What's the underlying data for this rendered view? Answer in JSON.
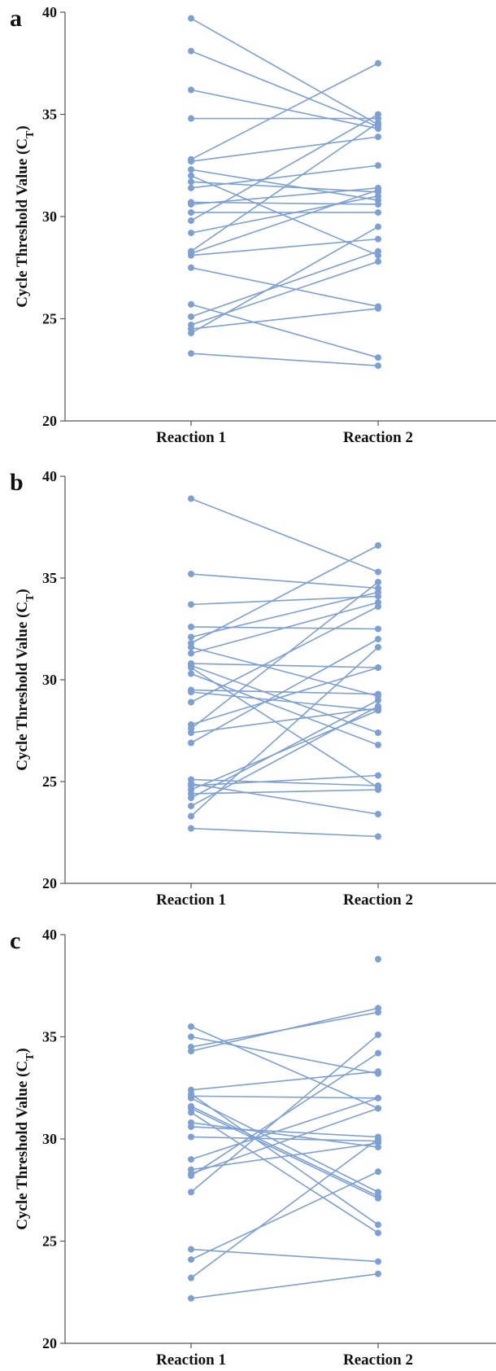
{
  "colors": {
    "series": "#7d9fd4",
    "axis": "#555555",
    "text": "#111111"
  },
  "ylabel_main": "Cycle Threshold Value (C",
  "ylabel_sub": "T",
  "ylabel_close": ")",
  "chart_data": [
    {
      "panel": "a",
      "type": "scatter",
      "categories": [
        "Reaction 1",
        "Reaction 2"
      ],
      "ylim": [
        20,
        40
      ],
      "yticks": [
        20,
        25,
        30,
        35,
        40
      ],
      "ylabel": "Cycle Threshold Value (CT)",
      "pairs": [
        [
          39.7,
          34.5
        ],
        [
          38.1,
          34.4
        ],
        [
          36.2,
          34.3
        ],
        [
          34.8,
          34.8
        ],
        [
          32.8,
          37.5
        ],
        [
          32.7,
          33.9
        ],
        [
          32.3,
          30.8
        ],
        [
          32.0,
          28.1
        ],
        [
          31.7,
          31.2
        ],
        [
          31.4,
          32.5
        ],
        [
          30.7,
          30.6
        ],
        [
          30.6,
          31.4
        ],
        [
          30.2,
          30.2
        ],
        [
          29.8,
          35.0
        ],
        [
          29.2,
          31.0
        ],
        [
          28.3,
          34.6
        ],
        [
          28.2,
          31.3
        ],
        [
          28.1,
          28.9
        ],
        [
          27.5,
          25.6
        ],
        [
          25.7,
          23.1
        ],
        [
          25.1,
          28.3
        ],
        [
          24.7,
          27.8
        ],
        [
          24.5,
          25.5
        ],
        [
          24.3,
          29.5
        ],
        [
          23.3,
          22.7
        ]
      ]
    },
    {
      "panel": "b",
      "type": "scatter",
      "categories": [
        "Reaction 1",
        "Reaction 2"
      ],
      "ylim": [
        20,
        40
      ],
      "yticks": [
        20,
        25,
        30,
        35,
        40
      ],
      "ylabel": "Cycle Threshold Value (CT)",
      "pairs": [
        [
          38.9,
          35.3
        ],
        [
          35.2,
          34.5
        ],
        [
          33.7,
          34.1
        ],
        [
          32.6,
          32.5
        ],
        [
          32.1,
          34.3
        ],
        [
          31.8,
          36.6
        ],
        [
          31.6,
          29.2
        ],
        [
          31.3,
          33.8
        ],
        [
          30.8,
          30.6
        ],
        [
          30.6,
          24.7
        ],
        [
          30.3,
          26.8
        ],
        [
          29.5,
          29.3
        ],
        [
          28.9,
          33.6
        ],
        [
          27.8,
          30.6
        ],
        [
          27.6,
          34.8
        ],
        [
          27.4,
          28.6
        ],
        [
          26.9,
          32.0
        ],
        [
          25.1,
          24.8
        ],
        [
          24.8,
          25.3
        ],
        [
          24.6,
          28.5
        ],
        [
          24.4,
          24.6
        ],
        [
          24.2,
          29.0
        ],
        [
          23.8,
          28.7
        ],
        [
          23.3,
          31.6
        ],
        [
          22.7,
          22.3
        ],
        [
          24.9,
          23.4
        ],
        [
          30.7,
          27.4
        ],
        [
          29.4,
          28.5
        ]
      ]
    },
    {
      "panel": "c",
      "type": "scatter",
      "categories": [
        "Reaction 1",
        "Reaction 2"
      ],
      "ylim": [
        20,
        40
      ],
      "yticks": [
        20,
        25,
        30,
        35,
        40
      ],
      "ylabel": "Cycle Threshold Value (CT)",
      "pairs": [
        [
          35.5,
          31.5
        ],
        [
          35.0,
          33.2
        ],
        [
          34.5,
          36.2
        ],
        [
          34.3,
          36.4
        ],
        [
          32.4,
          33.3
        ],
        [
          32.2,
          25.8
        ],
        [
          32.0,
          27.4
        ],
        [
          31.6,
          27.2
        ],
        [
          31.5,
          27.1
        ],
        [
          31.3,
          25.4
        ],
        [
          30.8,
          29.6
        ],
        [
          30.6,
          30.1
        ],
        [
          30.1,
          29.9
        ],
        [
          29.0,
          32.0
        ],
        [
          28.5,
          29.8
        ],
        [
          28.3,
          31.5
        ],
        [
          28.2,
          34.2
        ],
        [
          27.4,
          35.1
        ],
        [
          24.6,
          24.0
        ],
        [
          24.1,
          28.4
        ],
        [
          23.2,
          30.0
        ],
        [
          22.2,
          23.4
        ],
        [
          32.1,
          32.0
        ]
      ],
      "extra_points_r2": [
        38.8
      ]
    }
  ]
}
